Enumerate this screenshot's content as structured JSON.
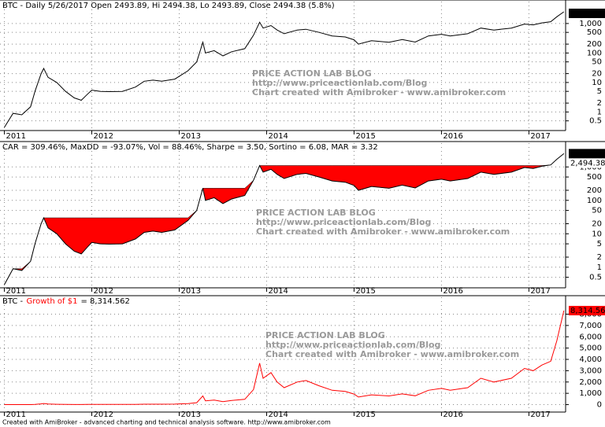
{
  "chart_data": [
    {
      "type": "line",
      "title": "BTC - Daily 5/26/2017 Open 2493.89, Hi 2494.38, Lo 2493.89, Close 2494.38 (5.8%)",
      "last_value_labels": [
        "2,494.38"
      ],
      "watermark": [
        "PRICE ACTION LAB BLOG",
        "http://www.priceactionlab.com/Blog",
        "Chart created with Amibroker - www.amibroker.com"
      ],
      "log_scale": true,
      "grid": true,
      "color": "#000000",
      "x": [
        2011.0,
        2011.1,
        2011.2,
        2011.3,
        2011.35,
        2011.42,
        2011.45,
        2011.5,
        2011.6,
        2011.7,
        2011.8,
        2011.88,
        2011.95,
        2012.0,
        2012.1,
        2012.2,
        2012.35,
        2012.5,
        2012.6,
        2012.7,
        2012.8,
        2012.95,
        2013.1,
        2013.2,
        2013.27,
        2013.3,
        2013.4,
        2013.5,
        2013.6,
        2013.75,
        2013.85,
        2013.92,
        2013.96,
        2014.05,
        2014.12,
        2014.2,
        2014.35,
        2014.45,
        2014.6,
        2014.75,
        2014.9,
        2015.0,
        2015.05,
        2015.2,
        2015.4,
        2015.55,
        2015.7,
        2015.85,
        2016.0,
        2016.1,
        2016.3,
        2016.45,
        2016.6,
        2016.8,
        2016.95,
        2017.05,
        2017.15,
        2017.25,
        2017.32,
        2017.4
      ],
      "values": [
        0.3,
        0.9,
        0.8,
        1.5,
        5,
        20,
        30,
        15,
        10,
        5,
        3,
        2.5,
        4,
        5.5,
        5,
        4.9,
        5,
        7,
        11,
        12,
        11,
        13,
        25,
        50,
        230,
        100,
        120,
        80,
        110,
        140,
        400,
        1100,
        700,
        850,
        600,
        450,
        600,
        640,
        500,
        380,
        350,
        280,
        200,
        260,
        230,
        285,
        235,
        380,
        430,
        380,
        450,
        700,
        600,
        700,
        960,
        900,
        1050,
        1150,
        1700,
        2494.38
      ],
      "xlim": [
        2010.95,
        2017.42
      ],
      "xticks": [
        2011,
        2012,
        2013,
        2014,
        2015,
        2016,
        2017
      ],
      "ylim": [
        0.3,
        3000
      ],
      "yticks": [
        0.5,
        1,
        2,
        5,
        10,
        20,
        50,
        100,
        200,
        500,
        {
          "value": 1000,
          "label": "1,000"
        }
      ]
    },
    {
      "type": "drawdown",
      "title": "CAR = 309.46%, MaxDD = -93.07%, Vol = 88.46%, Sharpe = 3.50, Sortino = 6.08, MAR = 3.32",
      "last_value_labels": [
        "2,494.38",
        "2,494.38"
      ],
      "watermark": [
        "PRICE ACTION LAB BLOG",
        "http://www.priceactionlab.com/Blog",
        "Chart created with Amibroker - www.amibroker.com"
      ],
      "log_scale": true,
      "grid": true,
      "color": "#000000",
      "fill_color": "#ff0000",
      "x": [
        2011.0,
        2011.1,
        2011.2,
        2011.3,
        2011.35,
        2011.42,
        2011.45,
        2011.5,
        2011.6,
        2011.7,
        2011.8,
        2011.88,
        2011.95,
        2012.0,
        2012.1,
        2012.2,
        2012.35,
        2012.5,
        2012.6,
        2012.7,
        2012.8,
        2012.95,
        2013.1,
        2013.2,
        2013.27,
        2013.3,
        2013.4,
        2013.5,
        2013.6,
        2013.75,
        2013.85,
        2013.92,
        2013.96,
        2014.05,
        2014.12,
        2014.2,
        2014.35,
        2014.45,
        2014.6,
        2014.75,
        2014.9,
        2015.0,
        2015.05,
        2015.2,
        2015.4,
        2015.55,
        2015.7,
        2015.85,
        2016.0,
        2016.1,
        2016.3,
        2016.45,
        2016.6,
        2016.8,
        2016.95,
        2017.05,
        2017.15,
        2017.25,
        2017.32,
        2017.4
      ],
      "values": [
        0.3,
        0.9,
        0.8,
        1.5,
        5,
        20,
        30,
        15,
        10,
        5,
        3,
        2.5,
        4,
        5.5,
        5,
        4.9,
        5,
        7,
        11,
        12,
        11,
        13,
        25,
        50,
        230,
        100,
        120,
        80,
        110,
        140,
        400,
        1100,
        700,
        850,
        600,
        450,
        600,
        640,
        500,
        380,
        350,
        280,
        200,
        260,
        230,
        285,
        235,
        380,
        430,
        380,
        450,
        700,
        600,
        700,
        960,
        900,
        1050,
        1150,
        1700,
        2494.38
      ],
      "xlim": [
        2010.95,
        2017.42
      ],
      "xticks": [
        2011,
        2012,
        2013,
        2014,
        2015,
        2016,
        2017
      ],
      "ylim": [
        0.3,
        3000
      ],
      "yticks": [
        0.5,
        1,
        2,
        5,
        10,
        20,
        50,
        100,
        200,
        500,
        {
          "value": 1000,
          "label": "1,000"
        }
      ]
    },
    {
      "type": "line",
      "title": [
        "BTC -",
        "Growth of $1",
        "= 8,314.562"
      ],
      "last_value_labels": [
        "8,314.56"
      ],
      "watermark": [
        "PRICE ACTION LAB BLOG",
        "http://www.priceactionlab.com/Blog",
        "Chart created with Amibroker - www.amibroker.com"
      ],
      "log_scale": false,
      "grid": true,
      "color": "#ff0000",
      "x": [
        2011.0,
        2011.1,
        2011.2,
        2011.3,
        2011.35,
        2011.42,
        2011.45,
        2011.5,
        2011.6,
        2011.7,
        2011.8,
        2011.88,
        2011.95,
        2012.0,
        2012.1,
        2012.2,
        2012.35,
        2012.5,
        2012.6,
        2012.7,
        2012.8,
        2012.95,
        2013.1,
        2013.2,
        2013.27,
        2013.3,
        2013.4,
        2013.5,
        2013.6,
        2013.75,
        2013.85,
        2013.92,
        2013.96,
        2014.05,
        2014.12,
        2014.2,
        2014.35,
        2014.45,
        2014.6,
        2014.75,
        2014.9,
        2015.0,
        2015.05,
        2015.2,
        2015.4,
        2015.55,
        2015.7,
        2015.85,
        2016.0,
        2016.1,
        2016.3,
        2016.45,
        2016.6,
        2016.8,
        2016.95,
        2017.05,
        2017.15,
        2017.25,
        2017.32,
        2017.4
      ],
      "values": [
        1,
        3,
        2.67,
        5,
        16.7,
        66.7,
        100,
        50,
        33.3,
        16.7,
        10,
        8.33,
        13.3,
        18.3,
        16.7,
        16.3,
        16.7,
        23.3,
        36.7,
        40,
        36.7,
        43.3,
        83.3,
        166.7,
        766.7,
        333.3,
        400,
        266.7,
        366.7,
        466.7,
        1333.3,
        3666.7,
        2333.3,
        2833.3,
        2000,
        1500,
        2000,
        2133.3,
        1666.7,
        1266.7,
        1166.7,
        933.3,
        666.7,
        866.7,
        766.7,
        950,
        783.3,
        1266.7,
        1433.3,
        1266.7,
        1500,
        2333.3,
        2000,
        2333.3,
        3200,
        3000,
        3500,
        3833.3,
        5666.7,
        8314.562
      ],
      "xlim": [
        2010.95,
        2017.42
      ],
      "xticks": [
        2011,
        2012,
        2013,
        2014,
        2015,
        2016,
        2017
      ],
      "ylim": [
        -380,
        8800
      ],
      "yticks": [
        0,
        {
          "value": 1000,
          "label": "1,000"
        },
        {
          "value": 2000,
          "label": "2,000"
        },
        {
          "value": 3000,
          "label": "3,000"
        },
        {
          "value": 4000,
          "label": "4,000"
        },
        {
          "value": 5000,
          "label": "5,000"
        },
        {
          "value": 6000,
          "label": "6,000"
        },
        {
          "value": 7000,
          "label": "7,000"
        },
        {
          "value": 8000,
          "label": "8,000"
        }
      ]
    }
  ],
  "footer": "Created with AmiBroker - advanced charting and technical analysis software. http://www.amibroker.com"
}
